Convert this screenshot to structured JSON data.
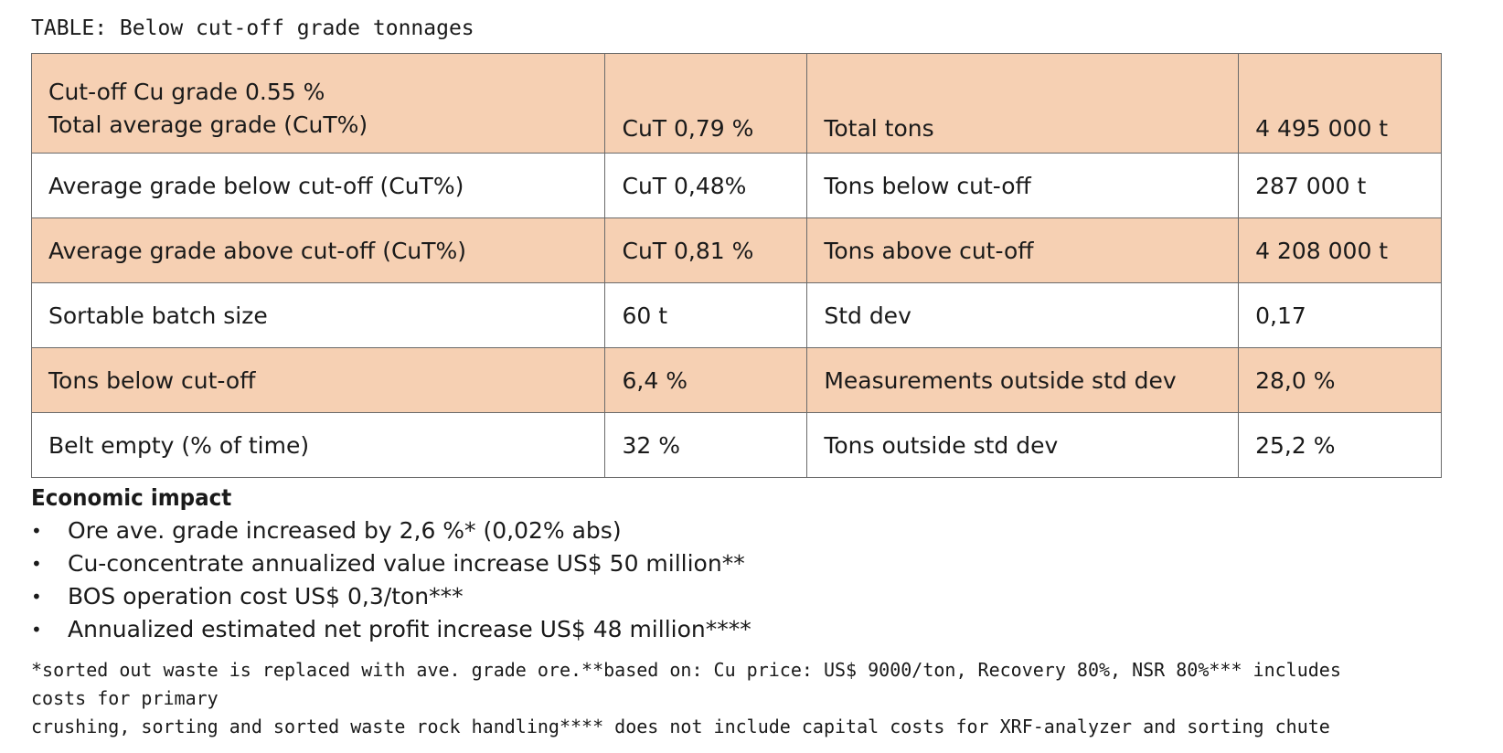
{
  "caption": "TABLE: Below cut-off grade tonnages",
  "table": {
    "header": {
      "label_line1": "Cut-off Cu grade 0.55 %",
      "label_line2": "Total average grade (CuT%)",
      "value1": "CuT 0,79 %",
      "label2": "Total tons",
      "value2": "4 495 000 t"
    },
    "rows": [
      {
        "label1": "Average grade below cut-off (CuT%)",
        "value1": "CuT 0,48%",
        "label2": "Tons below cut-off",
        "value2": "287 000 t"
      },
      {
        "label1": "Average grade above cut-off (CuT%)",
        "value1": "CuT 0,81 %",
        "label2": "Tons above cut-off",
        "value2": "4 208 000 t"
      },
      {
        "label1": "Sortable batch size",
        "value1": "60 t",
        "label2": "Std dev",
        "value2": "0,17"
      },
      {
        "label1": "Tons below cut-off",
        "value1": "6,4 %",
        "label2": "Measurements outside std dev",
        "value2": "28,0 %"
      },
      {
        "label1": "Belt empty (% of time)",
        "value1": "32 %",
        "label2": "Tons outside std dev",
        "value2": "25,2 %"
      }
    ],
    "colors": {
      "shaded": "#f6d0b3",
      "plain": "#ffffff",
      "border": "#6a6a6a"
    }
  },
  "impact": {
    "title": "Economic impact",
    "bullet": "•",
    "items": [
      "Ore ave. grade increased by 2,6 %* (0,02% abs)",
      "Cu-concentrate annualized value increase US$ 50 million**",
      "BOS operation cost US$ 0,3/ton***",
      "Annualized estimated net profit increase US$ 48 million****"
    ]
  },
  "footnote": {
    "line1": "*sorted out waste is replaced with ave. grade ore.**based on: Cu price: US$ 9000/ton, Recovery 80%, NSR 80%*** includes costs for primary",
    "line2": "crushing, sorting and sorted waste rock handling**** does not include capital costs for XRF-analyzer and sorting chute"
  }
}
